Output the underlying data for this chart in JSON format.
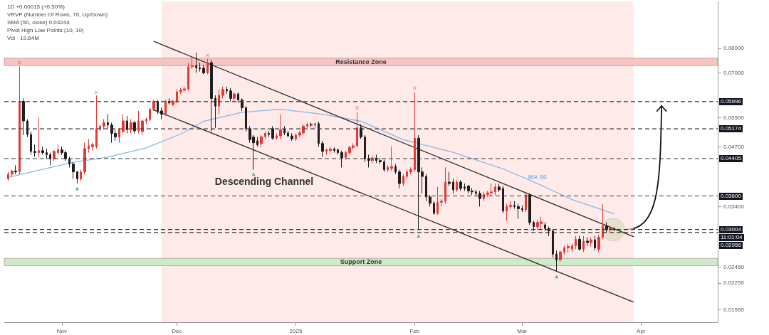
{
  "chart_data": {
    "type": "candlestick",
    "log": true,
    "colors": [
      "#e53935",
      "#e53935",
      "#1e1e1e",
      "#e53935",
      "#1e1e1e",
      "#1e1e1e",
      "#1e1e1e",
      "#1e1e1e",
      "#e53935",
      "#1e1e1e",
      "#1e1e1e",
      "#1e1e1e",
      "#e53935",
      "#e53935",
      "#1e1e1e",
      "#1e1e1e",
      "#1e1e1e",
      "#1e1e1e",
      "#1e1e1e",
      "#e53935",
      "#e53935",
      "#e53935",
      "#e53935",
      "#e53935",
      "#e53935",
      "#e53935",
      "#1e1e1e",
      "#1e1e1e",
      "#1e1e1e",
      "#e53935",
      "#e53935",
      "#1e1e1e",
      "#e53935",
      "#1e1e1e",
      "#e53935",
      "#e53935",
      "#e53935",
      "#e53935",
      "#e53935",
      "#1e1e1e",
      "#1e1e1e",
      "#e53935",
      "#1e1e1e",
      "#e53935",
      "#e53935",
      "#e53935",
      "#e53935",
      "#e53935",
      "#e53935",
      "#1e1e1e",
      "#1e1e1e",
      "#1e1e1e",
      "#e53935",
      "#1e1e1e",
      "#1e1e1e",
      "#e53935",
      "#e53935",
      "#1e1e1e",
      "#1e1e1e",
      "#e53935",
      "#1e1e1e",
      "#1e1e1e",
      "#1e1e1e",
      "#1e1e1e",
      "#1e1e1e",
      "#1e1e1e",
      "#e53935",
      "#e53935",
      "#1e1e1e",
      "#1e1e1e",
      "#e53935",
      "#e53935",
      "#1e1e1e",
      "#1e1e1e",
      "#1e1e1e",
      "#e53935",
      "#e53935",
      "#e53935",
      "#e53935",
      "#1e1e1e",
      "#e53935",
      "#1e1e1e",
      "#1e1e1e",
      "#e53935",
      "#e53935",
      "#1e1e1e",
      "#1e1e1e",
      "#1e1e1e",
      "#e53935",
      "#e53935",
      "#e53935",
      "#e53935",
      "#1e1e1e",
      "#1e1e1e",
      "#1e1e1e",
      "#e53935",
      "#1e1e1e",
      "#1e1e1e",
      "#1e1e1e",
      "#e53935",
      "#e53935",
      "#1e1e1e",
      "#1e1e1e",
      "#e53935",
      "#e53935",
      "#e53935",
      "#e53935",
      "#1e1e1e",
      "#1e1e1e",
      "#1e1e1e",
      "#1e1e1e",
      "#1e1e1e",
      "#e53935",
      "#e53935",
      "#e53935",
      "#1e1e1e",
      "#1e1e1e",
      "#e53935",
      "#1e1e1e",
      "#1e1e1e",
      "#1e1e1e",
      "#1e1e1e",
      "#1e1e1e",
      "#1e1e1e",
      "#e53935",
      "#e53935",
      "#e53935",
      "#e53935",
      "#1e1e1e",
      "#1e1e1e",
      "#e53935",
      "#e53935",
      "#1e1e1e",
      "#1e1e1e",
      "#1e1e1e",
      "#e53935",
      "#1e1e1e",
      "#1e1e1e",
      "#e53935",
      "#e53935",
      "#1e1e1e",
      "#1e1e1e",
      "#1e1e1e",
      "#1e1e1e",
      "#e53935",
      "#e53935",
      "#e53935",
      "#e53935",
      "#e53935",
      "#1e1e1e",
      "#e53935",
      "#1e1e1e",
      "#e53935",
      "#1e1e1e",
      "#e53935",
      "#e53935",
      "#1e1e1e",
      "#e53935",
      "#1e1e1e"
    ],
    "x": [
      "2024-10-18",
      "2024-10-19",
      "2024-10-20",
      "2024-10-21",
      "2024-10-22",
      "2024-10-23",
      "2024-10-24",
      "2024-10-25",
      "2024-10-26",
      "2024-10-27",
      "2024-10-28",
      "2024-10-29",
      "2024-10-30",
      "2024-10-31",
      "2024-11-01",
      "2024-11-02",
      "2024-11-03",
      "2024-11-04",
      "2024-11-05",
      "2024-11-06",
      "2024-11-07",
      "2024-11-08",
      "2024-11-09",
      "2024-11-10",
      "2024-11-11",
      "2024-11-12",
      "2024-11-13",
      "2024-11-14",
      "2024-11-15",
      "2024-11-16",
      "2024-11-17",
      "2024-11-18",
      "2024-11-19",
      "2024-11-20",
      "2024-11-21",
      "2024-11-22",
      "2024-11-23",
      "2024-11-24",
      "2024-11-25",
      "2024-11-26",
      "2024-11-27",
      "2024-11-28",
      "2024-11-29",
      "2024-11-30",
      "2024-12-01",
      "2024-12-02",
      "2024-12-03",
      "2024-12-04",
      "2024-12-05",
      "2024-12-06",
      "2024-12-07",
      "2024-12-08",
      "2024-12-09",
      "2024-12-10",
      "2024-12-11",
      "2024-12-12",
      "2024-12-13",
      "2024-12-14",
      "2024-12-15",
      "2024-12-16",
      "2024-12-17",
      "2024-12-18",
      "2024-12-19",
      "2024-12-20",
      "2024-12-21",
      "2024-12-22",
      "2024-12-23",
      "2024-12-24",
      "2024-12-25",
      "2024-12-26",
      "2024-12-27",
      "2024-12-28",
      "2024-12-29",
      "2024-12-30",
      "2024-12-31",
      "2025-01-01",
      "2025-01-02",
      "2025-01-03",
      "2025-01-04",
      "2025-01-05",
      "2025-01-06",
      "2025-01-07",
      "2025-01-08",
      "2025-01-09",
      "2025-01-10",
      "2025-01-11",
      "2025-01-12",
      "2025-01-13",
      "2025-01-14",
      "2025-01-15",
      "2025-01-16",
      "2025-01-17",
      "2025-01-18",
      "2025-01-19",
      "2025-01-20",
      "2025-01-21",
      "2025-01-22",
      "2025-01-23",
      "2025-01-24",
      "2025-01-25",
      "2025-01-26",
      "2025-01-27",
      "2025-01-28",
      "2025-01-29",
      "2025-01-30",
      "2025-01-31",
      "2025-02-01",
      "2025-02-02",
      "2025-02-03",
      "2025-02-04",
      "2025-02-05",
      "2025-02-06",
      "2025-02-07",
      "2025-02-08",
      "2025-02-09",
      "2025-02-10",
      "2025-02-11",
      "2025-02-12",
      "2025-02-13",
      "2025-02-14",
      "2025-02-15",
      "2025-02-16",
      "2025-02-17",
      "2025-02-18",
      "2025-02-19",
      "2025-02-20",
      "2025-02-21",
      "2025-02-22",
      "2025-02-23",
      "2025-02-24",
      "2025-02-25",
      "2025-02-26",
      "2025-02-27",
      "2025-02-28",
      "2025-03-01",
      "2025-03-02",
      "2025-03-03",
      "2025-03-04",
      "2025-03-05",
      "2025-03-06",
      "2025-03-07",
      "2025-03-08",
      "2025-03-09",
      "2025-03-10",
      "2025-03-11",
      "2025-03-12",
      "2025-03-13",
      "2025-03-14",
      "2025-03-15",
      "2025-03-16",
      "2025-03-17",
      "2025-03-18",
      "2025-03-19",
      "2025-03-20",
      "2025-03-21",
      "2025-03-22",
      "2025-03-23",
      "2025-03-24",
      "2025-03-25"
    ],
    "ohlc": [
      [
        0.0395,
        0.041,
        0.039,
        0.0405
      ],
      [
        0.0405,
        0.0415,
        0.04,
        0.0412
      ],
      [
        0.0412,
        0.0425,
        0.0405,
        0.041
      ],
      [
        0.041,
        0.0725,
        0.0405,
        0.06
      ],
      [
        0.06,
        0.061,
        0.05,
        0.054
      ],
      [
        0.054,
        0.0545,
        0.0495,
        0.0502
      ],
      [
        0.0502,
        0.051,
        0.045,
        0.0458
      ],
      [
        0.0458,
        0.0475,
        0.0445,
        0.0455
      ],
      [
        0.0455,
        0.055,
        0.0445,
        0.046
      ],
      [
        0.046,
        0.047,
        0.045,
        0.0455
      ],
      [
        0.0455,
        0.0465,
        0.044,
        0.045
      ],
      [
        0.045,
        0.0455,
        0.0425,
        0.044
      ],
      [
        0.044,
        0.0462,
        0.0435,
        0.0458
      ],
      [
        0.0455,
        0.0475,
        0.045,
        0.0462
      ],
      [
        0.0462,
        0.047,
        0.045,
        0.0455
      ],
      [
        0.0455,
        0.046,
        0.0435,
        0.044
      ],
      [
        0.044,
        0.0445,
        0.042,
        0.0428
      ],
      [
        0.0428,
        0.0432,
        0.0395,
        0.041
      ],
      [
        0.041,
        0.0412,
        0.0385,
        0.0395
      ],
      [
        0.0395,
        0.0415,
        0.039,
        0.041
      ],
      [
        0.041,
        0.048,
        0.0405,
        0.0465
      ],
      [
        0.0465,
        0.049,
        0.0455,
        0.0472
      ],
      [
        0.047,
        0.048,
        0.046,
        0.0475
      ],
      [
        0.047,
        0.062,
        0.0465,
        0.0518
      ],
      [
        0.0518,
        0.053,
        0.051,
        0.0525
      ],
      [
        0.0525,
        0.0545,
        0.0515,
        0.0535
      ],
      [
        0.0535,
        0.056,
        0.052,
        0.0528
      ],
      [
        0.0528,
        0.0535,
        0.048,
        0.0505
      ],
      [
        0.0505,
        0.0515,
        0.0485,
        0.0495
      ],
      [
        0.0495,
        0.052,
        0.048,
        0.0515
      ],
      [
        0.051,
        0.056,
        0.0505,
        0.054
      ],
      [
        0.054,
        0.0555,
        0.0505,
        0.0515
      ],
      [
        0.0515,
        0.0545,
        0.0505,
        0.0535
      ],
      [
        0.0535,
        0.054,
        0.0505,
        0.0512
      ],
      [
        0.0512,
        0.057,
        0.0505,
        0.054
      ],
      [
        0.051,
        0.0545,
        0.05,
        0.054
      ],
      [
        0.054,
        0.055,
        0.053,
        0.0545
      ],
      [
        0.0545,
        0.058,
        0.054,
        0.0575
      ],
      [
        0.0575,
        0.0605,
        0.057,
        0.06
      ],
      [
        0.06,
        0.0605,
        0.056,
        0.057
      ],
      [
        0.057,
        0.058,
        0.0545,
        0.056
      ],
      [
        0.056,
        0.0605,
        0.0555,
        0.06
      ],
      [
        0.06,
        0.061,
        0.059,
        0.0595
      ],
      [
        0.059,
        0.0605,
        0.0585,
        0.06
      ],
      [
        0.06,
        0.064,
        0.0595,
        0.0632
      ],
      [
        0.0632,
        0.0645,
        0.0625,
        0.0638
      ],
      [
        0.0638,
        0.065,
        0.063,
        0.0642
      ],
      [
        0.0642,
        0.074,
        0.0635,
        0.0724
      ],
      [
        0.0724,
        0.076,
        0.0715,
        0.0728
      ],
      [
        0.0728,
        0.078,
        0.07,
        0.072
      ],
      [
        0.072,
        0.074,
        0.0705,
        0.0716
      ],
      [
        0.0718,
        0.073,
        0.0695,
        0.07
      ],
      [
        0.07,
        0.0755,
        0.0695,
        0.074
      ],
      [
        0.074,
        0.075,
        0.051,
        0.061
      ],
      [
        0.061,
        0.062,
        0.052,
        0.0585
      ],
      [
        0.0585,
        0.064,
        0.056,
        0.062
      ],
      [
        0.062,
        0.065,
        0.061,
        0.064
      ],
      [
        0.064,
        0.065,
        0.0625,
        0.0635
      ],
      [
        0.0635,
        0.0645,
        0.06,
        0.061
      ],
      [
        0.061,
        0.063,
        0.06,
        0.0625
      ],
      [
        0.0625,
        0.063,
        0.0595,
        0.0605
      ],
      [
        0.0605,
        0.061,
        0.057,
        0.058
      ],
      [
        0.058,
        0.0585,
        0.051,
        0.0518
      ],
      [
        0.0518,
        0.0525,
        0.048,
        0.0488
      ],
      [
        0.0495,
        0.05,
        0.0415,
        0.048
      ],
      [
        0.0485,
        0.0495,
        0.047,
        0.0475
      ],
      [
        0.0478,
        0.05,
        0.0468,
        0.0496
      ],
      [
        0.0496,
        0.051,
        0.049,
        0.0505
      ],
      [
        0.0505,
        0.0512,
        0.0495,
        0.0502
      ],
      [
        0.0518,
        0.0525,
        0.0488,
        0.0492
      ],
      [
        0.0492,
        0.0505,
        0.0488,
        0.0498
      ],
      [
        0.0498,
        0.056,
        0.049,
        0.0515
      ],
      [
        0.0515,
        0.0525,
        0.05,
        0.0506
      ],
      [
        0.0506,
        0.0512,
        0.0495,
        0.0498
      ],
      [
        0.0498,
        0.0505,
        0.0485,
        0.049
      ],
      [
        0.049,
        0.0505,
        0.0485,
        0.05
      ],
      [
        0.05,
        0.0512,
        0.0495,
        0.0506
      ],
      [
        0.0506,
        0.053,
        0.05,
        0.0525
      ],
      [
        0.0525,
        0.0535,
        0.052,
        0.053
      ],
      [
        0.053,
        0.0535,
        0.0522,
        0.0528
      ],
      [
        0.0528,
        0.0535,
        0.052,
        0.0532
      ],
      [
        0.0532,
        0.0538,
        0.047,
        0.0478
      ],
      [
        0.0478,
        0.0485,
        0.0445,
        0.0458
      ],
      [
        0.0458,
        0.0465,
        0.045,
        0.0462
      ],
      [
        0.046,
        0.047,
        0.0455,
        0.0464
      ],
      [
        0.0464,
        0.0468,
        0.0455,
        0.046
      ],
      [
        0.0462,
        0.0465,
        0.045,
        0.0455
      ],
      [
        0.0455,
        0.046,
        0.042,
        0.0443
      ],
      [
        0.0443,
        0.046,
        0.0438,
        0.0455
      ],
      [
        0.0455,
        0.0472,
        0.045,
        0.0468
      ],
      [
        0.0468,
        0.0478,
        0.0462,
        0.0472
      ],
      [
        0.0472,
        0.0566,
        0.0468,
        0.052
      ],
      [
        0.052,
        0.053,
        0.049,
        0.0495
      ],
      [
        0.0495,
        0.05,
        0.0432,
        0.044
      ],
      [
        0.044,
        0.045,
        0.042,
        0.0436
      ],
      [
        0.0436,
        0.0448,
        0.043,
        0.0442
      ],
      [
        0.0442,
        0.045,
        0.043,
        0.0436
      ],
      [
        0.0436,
        0.0442,
        0.0428,
        0.0433
      ],
      [
        0.0433,
        0.0438,
        0.041,
        0.0415
      ],
      [
        0.0415,
        0.0425,
        0.041,
        0.042
      ],
      [
        0.0418,
        0.047,
        0.0412,
        0.0422
      ],
      [
        0.0422,
        0.0428,
        0.0405,
        0.041
      ],
      [
        0.041,
        0.0415,
        0.0375,
        0.0385
      ],
      [
        0.0385,
        0.0405,
        0.038,
        0.04
      ],
      [
        0.04,
        0.0415,
        0.0395,
        0.041
      ],
      [
        0.041,
        0.042,
        0.0405,
        0.0415
      ],
      [
        0.0415,
        0.063,
        0.041,
        0.0492
      ],
      [
        0.0492,
        0.05,
        0.03,
        0.041
      ],
      [
        0.041,
        0.042,
        0.0365,
        0.04
      ],
      [
        0.04,
        0.0405,
        0.035,
        0.0358
      ],
      [
        0.0358,
        0.0362,
        0.034,
        0.0346
      ],
      [
        0.0346,
        0.035,
        0.0325,
        0.0328
      ],
      [
        0.0328,
        0.0378,
        0.0325,
        0.0348
      ],
      [
        0.0348,
        0.0355,
        0.034,
        0.035
      ],
      [
        0.035,
        0.042,
        0.0345,
        0.0388
      ],
      [
        0.0388,
        0.041,
        0.038,
        0.0385
      ],
      [
        0.0388,
        0.0395,
        0.0365,
        0.0372
      ],
      [
        0.0372,
        0.0392,
        0.0368,
        0.0388
      ],
      [
        0.0388,
        0.0392,
        0.037,
        0.0375
      ],
      [
        0.0378,
        0.0385,
        0.037,
        0.0375
      ],
      [
        0.038,
        0.0382,
        0.0365,
        0.037
      ],
      [
        0.037,
        0.0376,
        0.0362,
        0.0368
      ],
      [
        0.0368,
        0.0372,
        0.036,
        0.0365
      ],
      [
        0.0365,
        0.037,
        0.034,
        0.0355
      ],
      [
        0.0355,
        0.0368,
        0.035,
        0.0363
      ],
      [
        0.0363,
        0.037,
        0.0358,
        0.0366
      ],
      [
        0.0366,
        0.0385,
        0.036,
        0.0368
      ],
      [
        0.0368,
        0.0385,
        0.0362,
        0.0378
      ],
      [
        0.0378,
        0.0385,
        0.0368,
        0.0372
      ],
      [
        0.0375,
        0.038,
        0.0328,
        0.0332
      ],
      [
        0.0332,
        0.0345,
        0.0315,
        0.034
      ],
      [
        0.034,
        0.035,
        0.0335,
        0.0342
      ],
      [
        0.0342,
        0.035,
        0.0336,
        0.034
      ],
      [
        0.034,
        0.0345,
        0.0318,
        0.0336
      ],
      [
        0.0336,
        0.0342,
        0.033,
        0.0334
      ],
      [
        0.0334,
        0.0365,
        0.033,
        0.0362
      ],
      [
        0.0362,
        0.0365,
        0.0308,
        0.0312
      ],
      [
        0.0312,
        0.0315,
        0.0298,
        0.0305
      ],
      [
        0.0305,
        0.0316,
        0.03,
        0.0312
      ],
      [
        0.031,
        0.0322,
        0.03,
        0.0313
      ],
      [
        0.0308,
        0.0312,
        0.0298,
        0.0302
      ],
      [
        0.0302,
        0.0305,
        0.029,
        0.0298
      ],
      [
        0.0298,
        0.03,
        0.0258,
        0.0263
      ],
      [
        0.0263,
        0.0268,
        0.024,
        0.0255
      ],
      [
        0.0255,
        0.0268,
        0.0252,
        0.0266
      ],
      [
        0.0266,
        0.0275,
        0.0262,
        0.0272
      ],
      [
        0.0272,
        0.0278,
        0.0265,
        0.0274
      ],
      [
        0.027,
        0.0278,
        0.0266,
        0.0275
      ],
      [
        0.0275,
        0.029,
        0.027,
        0.0285
      ],
      [
        0.0285,
        0.029,
        0.0268,
        0.027
      ],
      [
        0.027,
        0.029,
        0.0266,
        0.0282
      ],
      [
        0.0282,
        0.0288,
        0.0275,
        0.028
      ],
      [
        0.028,
        0.0288,
        0.0274,
        0.0284
      ],
      [
        0.0284,
        0.029,
        0.0268,
        0.0272
      ],
      [
        0.027,
        0.0292,
        0.0266,
        0.0288
      ],
      [
        0.0288,
        0.0344,
        0.0285,
        0.0306
      ],
      [
        0.0306,
        0.0312,
        0.0295,
        0.03
      ],
      [
        0.03,
        0.0306,
        0.0296,
        0.0303
      ],
      [
        0.0301,
        0.0304,
        0.0298,
        0.03
      ]
    ],
    "series": [
      {
        "type": "line",
        "name": "MA 50",
        "color": "#8ab8e6",
        "x": [
          "2024-10-18",
          "2024-11-04",
          "2024-11-13",
          "2024-11-23",
          "2024-12-02",
          "2024-12-08",
          "2024-12-18",
          "2024-12-28",
          "2025-01-08",
          "2025-01-18",
          "2025-01-29",
          "2025-02-11",
          "2025-02-24",
          "2025-03-05",
          "2025-03-14",
          "2025-03-25"
        ],
        "values": [
          0.0398,
          0.0432,
          0.0444,
          0.0467,
          0.0503,
          0.0539,
          0.0566,
          0.0575,
          0.056,
          0.0539,
          0.0488,
          0.0456,
          0.0417,
          0.0385,
          0.0353,
          0.0327
        ]
      },
      {
        "type": "line",
        "color": "#2b2b2b",
        "x": [
          "2024-11-25",
          "2025-03-30"
        ],
        "values": [
          0.083,
          0.0289
        ]
      },
      {
        "type": "line",
        "color": "#2b2b2b",
        "x": [
          "2024-11-25",
          "2025-03-30"
        ],
        "values": [
          0.0573,
          0.0203
        ]
      },
      {
        "type": "scatter",
        "marker": "cross",
        "color": "#e05a5a",
        "x": [
          "2024-10-21",
          "2024-11-10",
          "2024-12-09",
          "2025-01-17",
          "2025-02-01"
        ],
        "values": [
          0.074,
          0.063,
          0.077,
          0.058,
          0.0645
        ]
      },
      {
        "type": "scatter",
        "marker": "triangle",
        "color": "#3aa655",
        "x": [
          "2024-11-05",
          "2024-12-21",
          "2025-02-02",
          "2025-03-10"
        ],
        "values": [
          0.0375,
          0.0405,
          0.029,
          0.0233
        ]
      }
    ],
    "xlim": [
      "2024-10-17",
      "2025-04-21"
    ],
    "xticks": [
      {
        "value": "2024-11-01",
        "label": "Nov"
      },
      {
        "value": "2024-12-01",
        "label": "Dec"
      },
      {
        "value": "2025-01-01",
        "label": "2025"
      },
      {
        "value": "2025-02-01",
        "label": "Feb"
      },
      {
        "value": "2025-03-01",
        "label": "Mar"
      },
      {
        "value": "2025-04-01",
        "label": "Apr"
      }
    ],
    "ylim": [
      0.0182,
      0.103
    ],
    "yticks": [
      {
        "value": 0.08,
        "label": "0.08000"
      },
      {
        "value": 0.07,
        "label": "0.07000"
      },
      {
        "value": 0.055,
        "label": "0.05500"
      },
      {
        "value": 0.047,
        "label": "0.04700"
      },
      {
        "value": 0.034,
        "label": "0.03400"
      },
      {
        "value": 0.0245,
        "label": "0.02450"
      },
      {
        "value": 0.0225,
        "label": "0.02250"
      },
      {
        "value": 0.0195,
        "label": "0.01950"
      }
    ],
    "ref_lines": [
      {
        "axis": "y",
        "value": 0.05996,
        "label": "0.05996",
        "line_style": "dashed",
        "color": "#333333"
      },
      {
        "axis": "y",
        "value": 0.05174,
        "label": "0.05174",
        "line_style": "dashed",
        "color": "#333333"
      },
      {
        "axis": "y",
        "value": 0.04405,
        "label": "0.04405",
        "line_style": "dashed",
        "color": "#333333"
      },
      {
        "axis": "y",
        "value": 0.036,
        "label": "0.03600",
        "line_style": "dashed",
        "color": "#333333"
      },
      {
        "axis": "y",
        "value": 0.03004,
        "label": "0.03004",
        "line_style": "dashed",
        "color": "#333333"
      },
      {
        "axis": "y",
        "value": 0.02956,
        "label": "0.02956",
        "line_style": "dashed",
        "color": "#333333"
      }
    ],
    "bands": [
      {
        "axis": "x",
        "from": "2024-11-27",
        "to": "2025-03-30",
        "color": "#fde3e1"
      },
      {
        "axis": "y",
        "from": 0.0728,
        "to": 0.0758,
        "label": "Resistance Zone",
        "color": "#f7c4c2"
      },
      {
        "axis": "y",
        "from": 0.0247,
        "to": 0.0257,
        "label": "Support Zone",
        "color": "#cdebc9"
      }
    ],
    "annotations": [
      "1D  +0.00015 (+0.50%)",
      "VRVP (Number Of Rows, 70, Up/Down)",
      "SMA (50, close)  0.03244",
      "Pivot High Low Points (10, 10)",
      "Vol · 19.64M",
      "Descending Channel",
      "11:01:04"
    ]
  }
}
